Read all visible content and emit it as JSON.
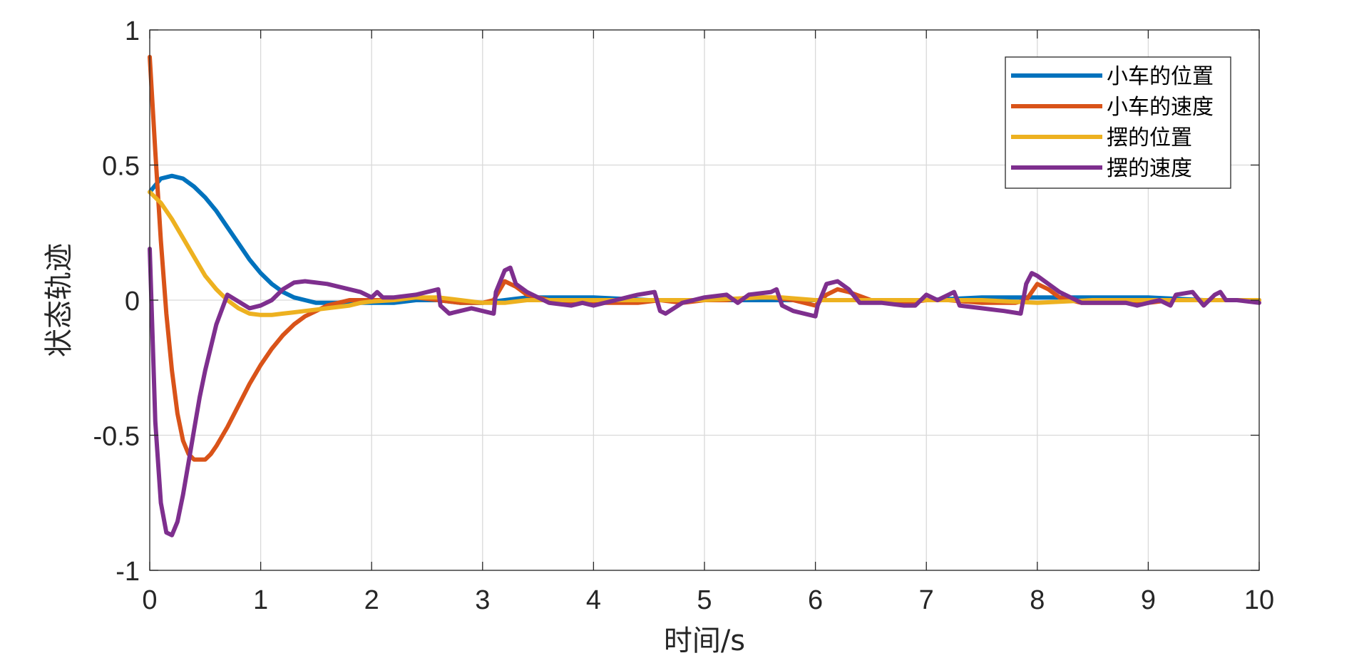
{
  "chart_data": {
    "type": "line",
    "title": "",
    "xlabel": "时间/s",
    "ylabel": "状态轨迹",
    "xlim": [
      0,
      10
    ],
    "ylim": [
      -1,
      1
    ],
    "xticks": [
      0,
      1,
      2,
      3,
      4,
      5,
      6,
      7,
      8,
      9,
      10
    ],
    "xtick_labels": [
      "0",
      "1",
      "2",
      "3",
      "4",
      "5",
      "6",
      "7",
      "8",
      "9",
      "10"
    ],
    "yticks": [
      -1,
      -0.5,
      0,
      0.5,
      1
    ],
    "ytick_labels": [
      "-1",
      "-0.5",
      "0",
      "0.5",
      "1"
    ],
    "grid": true,
    "legend_position": "top-right",
    "series": [
      {
        "name": "小车的位置",
        "color": "#0072BD",
        "x": [
          0,
          0.1,
          0.2,
          0.3,
          0.4,
          0.5,
          0.6,
          0.7,
          0.8,
          0.9,
          1.0,
          1.1,
          1.2,
          1.3,
          1.4,
          1.5,
          1.6,
          1.7,
          1.8,
          1.9,
          2.0,
          2.2,
          2.4,
          2.6,
          2.8,
          3.0,
          3.2,
          3.4,
          3.6,
          3.8,
          4.0,
          4.5,
          5.0,
          5.5,
          6.0,
          6.5,
          7.0,
          7.5,
          8.0,
          8.5,
          9.0,
          9.5,
          10.0
        ],
        "y": [
          0.4,
          0.45,
          0.46,
          0.45,
          0.42,
          0.38,
          0.33,
          0.27,
          0.21,
          0.15,
          0.1,
          0.06,
          0.03,
          0.01,
          0.0,
          -0.01,
          -0.01,
          -0.01,
          -0.01,
          -0.01,
          -0.01,
          -0.01,
          0.0,
          0.0,
          -0.01,
          -0.01,
          0.0,
          0.01,
          0.01,
          0.01,
          0.01,
          0.0,
          0.0,
          0.0,
          0.0,
          0.0,
          0.0,
          0.01,
          0.01,
          0.01,
          0.01,
          0.0,
          0.0
        ]
      },
      {
        "name": "小车的速度",
        "color": "#D95319",
        "x": [
          0,
          0.05,
          0.1,
          0.15,
          0.2,
          0.25,
          0.3,
          0.35,
          0.4,
          0.45,
          0.5,
          0.55,
          0.6,
          0.7,
          0.8,
          0.9,
          1.0,
          1.1,
          1.2,
          1.3,
          1.4,
          1.5,
          1.6,
          1.7,
          1.8,
          1.9,
          2.0,
          2.2,
          2.4,
          2.6,
          2.8,
          3.0,
          3.1,
          3.2,
          3.3,
          3.4,
          3.6,
          3.8,
          4.0,
          4.2,
          4.4,
          4.6,
          4.8,
          5.0,
          5.2,
          5.4,
          5.6,
          5.8,
          6.0,
          6.1,
          6.2,
          6.3,
          6.5,
          6.8,
          7.0,
          7.2,
          7.5,
          7.8,
          7.9,
          8.0,
          8.1,
          8.2,
          8.4,
          8.6,
          8.8,
          9.0,
          9.2,
          9.4,
          9.6,
          9.8,
          10.0
        ],
        "y": [
          0.9,
          0.55,
          0.22,
          -0.05,
          -0.26,
          -0.42,
          -0.52,
          -0.57,
          -0.59,
          -0.59,
          -0.59,
          -0.57,
          -0.54,
          -0.47,
          -0.39,
          -0.31,
          -0.24,
          -0.18,
          -0.13,
          -0.09,
          -0.06,
          -0.04,
          -0.02,
          -0.01,
          0.0,
          0.0,
          0.0,
          0.0,
          0.01,
          0.0,
          -0.01,
          -0.01,
          0.0,
          0.07,
          0.05,
          0.02,
          0.0,
          -0.01,
          -0.01,
          -0.01,
          -0.01,
          0.0,
          -0.01,
          0.0,
          0.0,
          0.01,
          0.01,
          0.0,
          -0.02,
          0.02,
          0.04,
          0.03,
          0.0,
          -0.01,
          0.0,
          0.0,
          -0.01,
          -0.01,
          0.0,
          0.06,
          0.04,
          0.01,
          -0.01,
          -0.01,
          -0.01,
          -0.01,
          0.0,
          0.0,
          0.0,
          0.0,
          0.0
        ]
      },
      {
        "name": "摆的位置",
        "color": "#EDB120",
        "x": [
          0,
          0.1,
          0.2,
          0.3,
          0.4,
          0.5,
          0.6,
          0.7,
          0.8,
          0.9,
          1.0,
          1.1,
          1.2,
          1.3,
          1.4,
          1.5,
          1.6,
          1.7,
          1.8,
          1.9,
          2.0,
          2.2,
          2.4,
          2.6,
          2.8,
          3.0,
          3.2,
          3.4,
          3.6,
          3.8,
          4.0,
          4.5,
          5.0,
          5.5,
          5.7,
          6.0,
          6.5,
          7.0,
          7.5,
          8.0,
          8.5,
          9.0,
          9.5,
          10.0
        ],
        "y": [
          0.4,
          0.36,
          0.3,
          0.23,
          0.16,
          0.09,
          0.04,
          0.0,
          -0.03,
          -0.05,
          -0.055,
          -0.055,
          -0.05,
          -0.045,
          -0.04,
          -0.035,
          -0.03,
          -0.025,
          -0.02,
          -0.01,
          -0.005,
          0.0,
          0.01,
          0.01,
          0.0,
          -0.01,
          -0.01,
          0.0,
          0.0,
          0.0,
          0.0,
          0.0,
          0.0,
          0.01,
          0.01,
          0.0,
          0.0,
          0.0,
          0.0,
          -0.01,
          0.0,
          0.0,
          0.0,
          0.0
        ]
      },
      {
        "name": "摆的速度",
        "color": "#7E2F8E",
        "x": [
          0,
          0.05,
          0.1,
          0.15,
          0.2,
          0.25,
          0.3,
          0.35,
          0.4,
          0.45,
          0.5,
          0.6,
          0.7,
          0.8,
          0.9,
          1.0,
          1.1,
          1.2,
          1.3,
          1.4,
          1.5,
          1.6,
          1.7,
          1.8,
          1.9,
          2.0,
          2.05,
          2.1,
          2.2,
          2.4,
          2.6,
          2.62,
          2.7,
          2.9,
          3.1,
          3.12,
          3.2,
          3.25,
          3.3,
          3.4,
          3.6,
          3.8,
          3.9,
          4.0,
          4.2,
          4.4,
          4.55,
          4.6,
          4.65,
          4.8,
          5.0,
          5.2,
          5.3,
          5.4,
          5.6,
          5.65,
          5.7,
          5.8,
          6.0,
          6.02,
          6.1,
          6.2,
          6.3,
          6.4,
          6.6,
          6.8,
          6.9,
          7.0,
          7.1,
          7.2,
          7.25,
          7.3,
          7.5,
          7.7,
          7.85,
          7.9,
          7.95,
          8.0,
          8.1,
          8.2,
          8.4,
          8.6,
          8.8,
          8.9,
          9.0,
          9.1,
          9.2,
          9.25,
          9.4,
          9.5,
          9.6,
          9.65,
          9.7,
          9.8,
          10.0
        ],
        "y": [
          0.19,
          -0.45,
          -0.75,
          -0.86,
          -0.87,
          -0.82,
          -0.72,
          -0.6,
          -0.48,
          -0.36,
          -0.26,
          -0.09,
          0.02,
          -0.005,
          -0.03,
          -0.02,
          0.0,
          0.04,
          0.065,
          0.07,
          0.065,
          0.06,
          0.05,
          0.04,
          0.03,
          0.01,
          0.03,
          0.01,
          0.01,
          0.02,
          0.04,
          -0.02,
          -0.05,
          -0.03,
          -0.05,
          0.03,
          0.11,
          0.12,
          0.06,
          0.03,
          -0.01,
          -0.02,
          -0.01,
          -0.02,
          0.0,
          0.02,
          0.03,
          -0.04,
          -0.05,
          -0.01,
          0.01,
          0.02,
          -0.01,
          0.02,
          0.03,
          0.04,
          -0.02,
          -0.04,
          -0.06,
          -0.02,
          0.06,
          0.07,
          0.04,
          -0.01,
          -0.01,
          -0.02,
          -0.02,
          0.02,
          0.0,
          0.02,
          0.03,
          -0.02,
          -0.03,
          -0.04,
          -0.05,
          0.06,
          0.1,
          0.09,
          0.06,
          0.03,
          -0.01,
          -0.01,
          -0.01,
          -0.02,
          -0.01,
          0.0,
          -0.02,
          0.02,
          0.03,
          -0.02,
          0.02,
          0.03,
          0.0,
          0.0,
          -0.01
        ]
      }
    ]
  }
}
